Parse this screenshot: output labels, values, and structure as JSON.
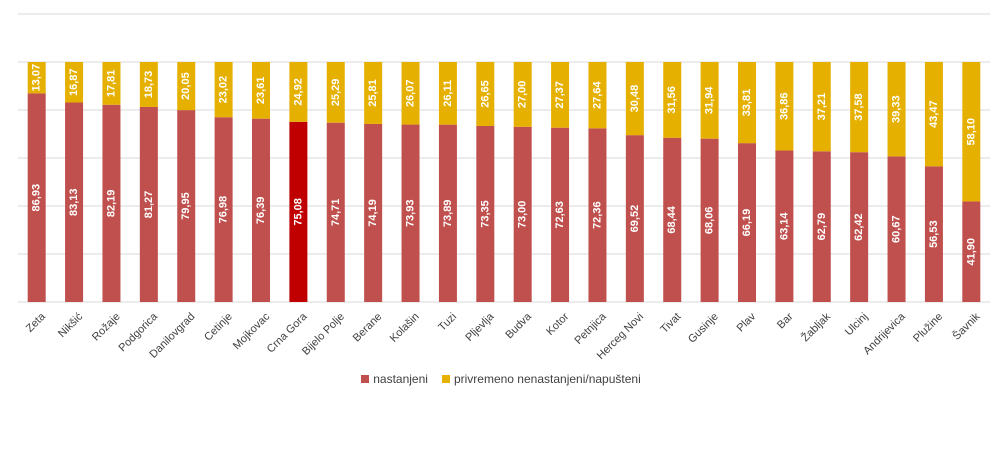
{
  "chart_data": {
    "type": "bar",
    "stacked": true,
    "categories": [
      "Zeta",
      "Nikšić",
      "Rožaje",
      "Podgorica",
      "Danilovgrad",
      "Cetinje",
      "Mojkovac",
      "Crna Gora",
      "Bijelo Polje",
      "Berane",
      "Kolašin",
      "Tuzi",
      "Pljevlja",
      "Budva",
      "Kotor",
      "Petnjica",
      "Herceg Novi",
      "Tivat",
      "Gusinje",
      "Plav",
      "Bar",
      "Žabljak",
      "Ulcinj",
      "Andrijevica",
      "Plužine",
      "Šavnik"
    ],
    "series": [
      {
        "name": "nastanjeni",
        "color": "#c0504d",
        "values": [
          86.93,
          83.13,
          82.19,
          81.27,
          79.95,
          76.98,
          76.39,
          75.08,
          74.71,
          74.19,
          73.93,
          73.89,
          73.35,
          73.0,
          72.63,
          72.36,
          69.52,
          68.44,
          68.06,
          66.19,
          63.14,
          62.79,
          62.42,
          60.67,
          56.53,
          41.9
        ],
        "labels": [
          "86,93",
          "83,13",
          "82,19",
          "81,27",
          "79,95",
          "76,98",
          "76,39",
          "75,08",
          "74,71",
          "74,19",
          "73,93",
          "73,89",
          "73,35",
          "73,00",
          "72,63",
          "72,36",
          "69,52",
          "68,44",
          "68,06",
          "66,19",
          "63,14",
          "62,79",
          "62,42",
          "60,67",
          "56,53",
          "41,90"
        ]
      },
      {
        "name": "privremeno nenastanjeni/napušteni",
        "color": "#e6b000",
        "values": [
          13.07,
          16.87,
          17.81,
          18.73,
          20.05,
          23.02,
          23.61,
          24.92,
          25.29,
          25.81,
          26.07,
          26.11,
          26.65,
          27.0,
          27.37,
          27.64,
          30.48,
          31.56,
          31.94,
          33.81,
          36.86,
          37.21,
          37.58,
          39.33,
          43.47,
          58.1
        ],
        "labels": [
          "13,07",
          "16,87",
          "17,81",
          "18,73",
          "20,05",
          "23,02",
          "23,61",
          "24,92",
          "25,29",
          "25,81",
          "26,07",
          "26,11",
          "26,65",
          "27,00",
          "27,37",
          "27,64",
          "30,48",
          "31,56",
          "31,94",
          "33,81",
          "36,86",
          "37,21",
          "37,58",
          "39,33",
          "43,47",
          "58,10"
        ]
      }
    ],
    "highlight": {
      "category": "Crna Gora",
      "color": "#c00000"
    },
    "ylim": [
      0,
      100
    ],
    "grid": true,
    "legend_position": "bottom"
  }
}
